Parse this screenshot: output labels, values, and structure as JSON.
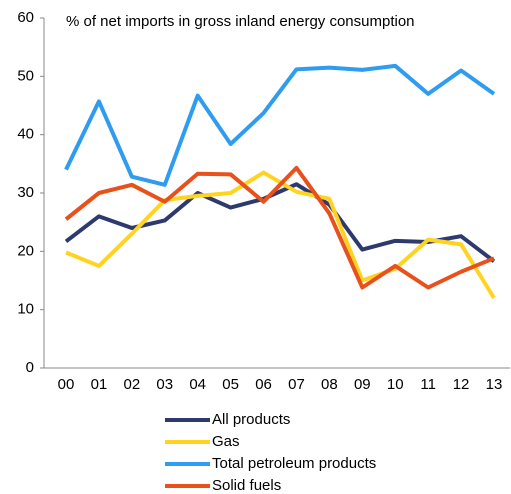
{
  "chart_data": {
    "type": "line",
    "title": "% of net imports in gross inland energy consumption",
    "categories": [
      "00",
      "01",
      "02",
      "03",
      "04",
      "05",
      "06",
      "07",
      "08",
      "09",
      "10",
      "11",
      "12",
      "13"
    ],
    "series": [
      {
        "name": "All products",
        "color": "#2e3a6e",
        "values": [
          21.7,
          26,
          24,
          25.3,
          30,
          27.5,
          29,
          31.5,
          28,
          20.3,
          21.8,
          21.6,
          22.6,
          18.3
        ]
      },
      {
        "name": "Gas",
        "color": "#ffd320",
        "values": [
          19.8,
          17.5,
          23,
          28.8,
          29.5,
          30,
          33.5,
          30.2,
          29,
          15,
          17,
          22,
          21.2,
          12
        ]
      },
      {
        "name": "Total petroleum products",
        "color": "#2f9cf0",
        "values": [
          34,
          45.7,
          32.8,
          31.4,
          46.7,
          38.4,
          43.7,
          51.2,
          51.5,
          51.1,
          51.8,
          47,
          51,
          47
        ]
      },
      {
        "name": "Solid fuels",
        "color": "#e8501c",
        "values": [
          25.5,
          30,
          31.4,
          28.5,
          33.3,
          33.2,
          28.5,
          34.3,
          26.5,
          13.8,
          17.5,
          13.8,
          16.5,
          18.8
        ]
      }
    ],
    "ylim": [
      0,
      60
    ],
    "yticks": [
      0,
      10,
      20,
      30,
      40,
      50,
      60
    ],
    "grid": false
  }
}
